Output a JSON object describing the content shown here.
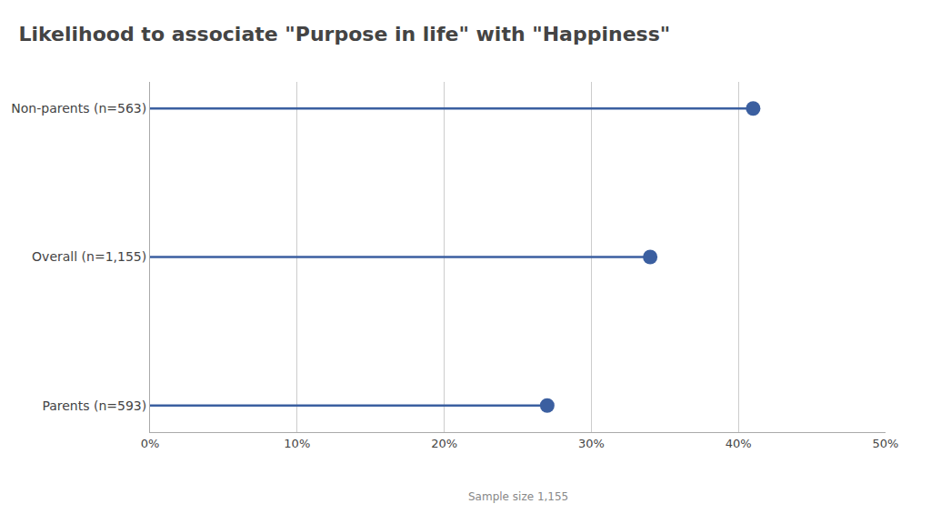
{
  "chart_data": {
    "type": "lollipop",
    "orientation": "horizontal",
    "title": "Likelihood to associate \"Purpose in life\" with \"Happiness\"",
    "categories": [
      "Parents (n=593)",
      "Overall (n=1,155)",
      "Non-parents (n=563)"
    ],
    "values": [
      27,
      34,
      41
    ],
    "color": "#3B5FA0",
    "xlim": [
      0,
      50
    ],
    "xticks": [
      {
        "value": 0,
        "label": "0%"
      },
      {
        "value": 10,
        "label": "10%"
      },
      {
        "value": 20,
        "label": "20%"
      },
      {
        "value": 30,
        "label": "30%"
      },
      {
        "value": 40,
        "label": "40%"
      },
      {
        "value": 50,
        "label": "50%"
      }
    ],
    "grid": true,
    "annotations": [
      "Sample size 1,155"
    ]
  }
}
